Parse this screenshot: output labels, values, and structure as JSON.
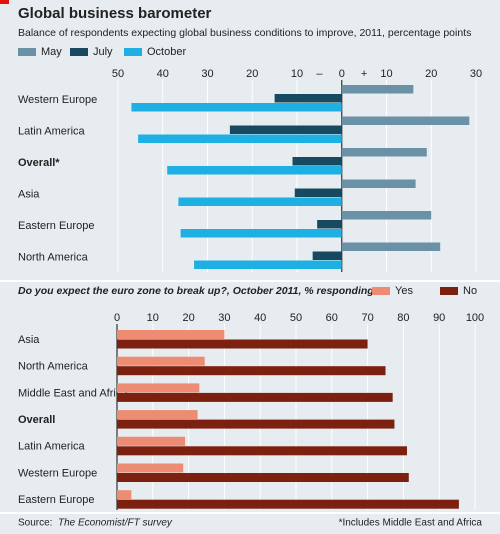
{
  "title": "Global business barometer",
  "source_label": "Source:",
  "source": "The Economist/FT survey",
  "footnote": "*Includes Middle East and Africa",
  "chart_data": [
    {
      "type": "bar",
      "orientation": "horizontal",
      "title": "Balance of respondents expecting global business conditions to improve, 2011, percentage points",
      "categories": [
        "Western Europe",
        "Latin America",
        "Overall*",
        "Asia",
        "Eastern Europe",
        "North America"
      ],
      "bold_categories": [
        2
      ],
      "series": [
        {
          "name": "May",
          "color": "#6b91a6",
          "values": [
            16,
            28.5,
            19,
            16.5,
            20,
            22
          ]
        },
        {
          "name": "July",
          "color": "#174a60",
          "values": [
            -15,
            -25,
            -11,
            -10.5,
            -5.5,
            -6.5
          ]
        },
        {
          "name": "October",
          "color": "#1fb0e3",
          "values": [
            -47,
            -45.5,
            -39,
            -36.5,
            -36,
            -33
          ]
        }
      ],
      "xlim": [
        -50,
        30
      ],
      "xticks": [
        {
          "value": -50,
          "label": "50"
        },
        {
          "value": -40,
          "label": "40"
        },
        {
          "value": -30,
          "label": "30"
        },
        {
          "value": -20,
          "label": "20"
        },
        {
          "value": -10,
          "label": "10"
        },
        0,
        10,
        20,
        30
      ],
      "axis_signs": [
        "–",
        "+"
      ],
      "grid": true
    },
    {
      "type": "bar",
      "orientation": "horizontal",
      "title": "Do you expect the euro zone to break up?, October 2011, % responding",
      "categories": [
        "Asia",
        "North America",
        "Middle East and Africa",
        "Overall",
        "Latin America",
        "Western Europe",
        "Eastern Europe"
      ],
      "bold_categories": [
        3
      ],
      "series": [
        {
          "name": "Yes",
          "color": "#ec8c72",
          "values": [
            30,
            24.5,
            23,
            22.5,
            19,
            18.5,
            4
          ]
        },
        {
          "name": "No",
          "color": "#7c200f",
          "values": [
            70,
            75,
            77,
            77.5,
            81,
            81.5,
            95.5
          ]
        }
      ],
      "xlim": [
        0,
        100
      ],
      "xticks": [
        0,
        10,
        20,
        30,
        40,
        50,
        60,
        70,
        80,
        90,
        100
      ],
      "grid": true
    }
  ]
}
